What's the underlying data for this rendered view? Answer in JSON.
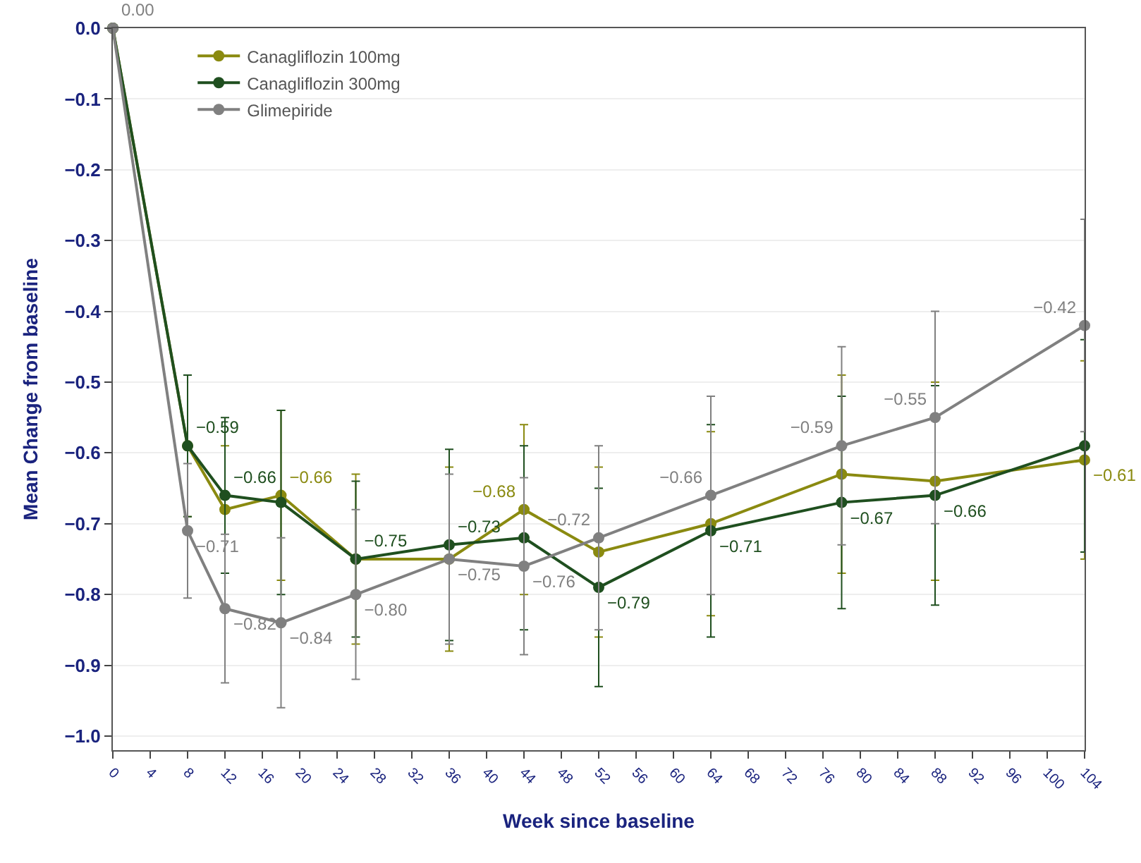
{
  "chart_data": {
    "type": "line",
    "xlabel": "Week since baseline",
    "ylabel": "Mean Change from baseline",
    "x": [
      0,
      8,
      12,
      18,
      26,
      36,
      44,
      52,
      64,
      78,
      88,
      104
    ],
    "series": [
      {
        "name": "Canagliflozin 100mg",
        "color": "#8a8a10",
        "values": [
          0,
          -0.59,
          -0.68,
          -0.66,
          -0.75,
          -0.75,
          -0.68,
          -0.74,
          -0.7,
          -0.63,
          -0.64,
          -0.61
        ],
        "errors": [
          null,
          0.1,
          0.09,
          0.12,
          0.12,
          0.13,
          0.12,
          0.12,
          0.13,
          0.14,
          0.14,
          0.14
        ],
        "value_labels": [
          null,
          null,
          null,
          "−0.66",
          null,
          null,
          "−0.68",
          null,
          null,
          null,
          null,
          "−0.61"
        ]
      },
      {
        "name": "Canagliflozin 300mg",
        "color": "#1f4f1f",
        "values": [
          0,
          -0.59,
          -0.66,
          -0.67,
          -0.75,
          -0.73,
          -0.72,
          -0.79,
          -0.71,
          -0.67,
          -0.66,
          -0.59
        ],
        "errors": [
          null,
          0.1,
          0.11,
          0.13,
          0.11,
          0.135,
          0.13,
          0.14,
          0.15,
          0.15,
          0.155,
          0.15
        ],
        "value_labels": [
          null,
          "−0.59",
          "−0.66",
          null,
          "−0.75",
          "−0.73",
          null,
          "−0.79",
          "−0.71",
          "−0.67",
          "−0.66",
          null
        ]
      },
      {
        "name": "Glimepiride",
        "color": "#808080",
        "values": [
          0,
          -0.71,
          -0.82,
          -0.84,
          -0.8,
          -0.75,
          -0.76,
          -0.72,
          -0.66,
          -0.59,
          -0.55,
          -0.42
        ],
        "errors": [
          null,
          0.095,
          0.105,
          0.12,
          0.12,
          0.12,
          0.125,
          0.13,
          0.14,
          0.14,
          0.15,
          0.15
        ],
        "value_labels": [
          "0.00",
          "−0.71",
          "−0.82",
          "−0.84",
          "−0.80",
          "−0.75",
          "−0.76",
          "−0.72",
          "−0.66",
          "−0.59",
          "−0.55",
          "−0.42"
        ]
      }
    ],
    "xlim": [
      0,
      104
    ],
    "xticks": [
      0,
      4,
      8,
      12,
      16,
      20,
      24,
      28,
      32,
      36,
      40,
      44,
      48,
      52,
      56,
      60,
      64,
      68,
      72,
      76,
      80,
      84,
      88,
      92,
      96,
      100,
      104
    ],
    "ylim": [
      -1.02,
      0
    ],
    "yticks": [
      {
        "value": -1.0,
        "label": "−1.0"
      },
      {
        "value": -0.9,
        "label": "−0.9"
      },
      {
        "value": -0.8,
        "label": "−0.8"
      },
      {
        "value": -0.7,
        "label": "−0.7"
      },
      {
        "value": -0.6,
        "label": "−0.6"
      },
      {
        "value": -0.5,
        "label": "−0.5"
      },
      {
        "value": -0.4,
        "label": "−0.4"
      },
      {
        "value": -0.3,
        "label": "−0.3"
      },
      {
        "value": -0.2,
        "label": "−0.2"
      },
      {
        "value": -0.1,
        "label": "−0.1"
      },
      {
        "value": 0.0,
        "label": "0.0"
      }
    ],
    "grid": "y",
    "legend": "top left",
    "marker": "circle",
    "line_style": "solid"
  }
}
